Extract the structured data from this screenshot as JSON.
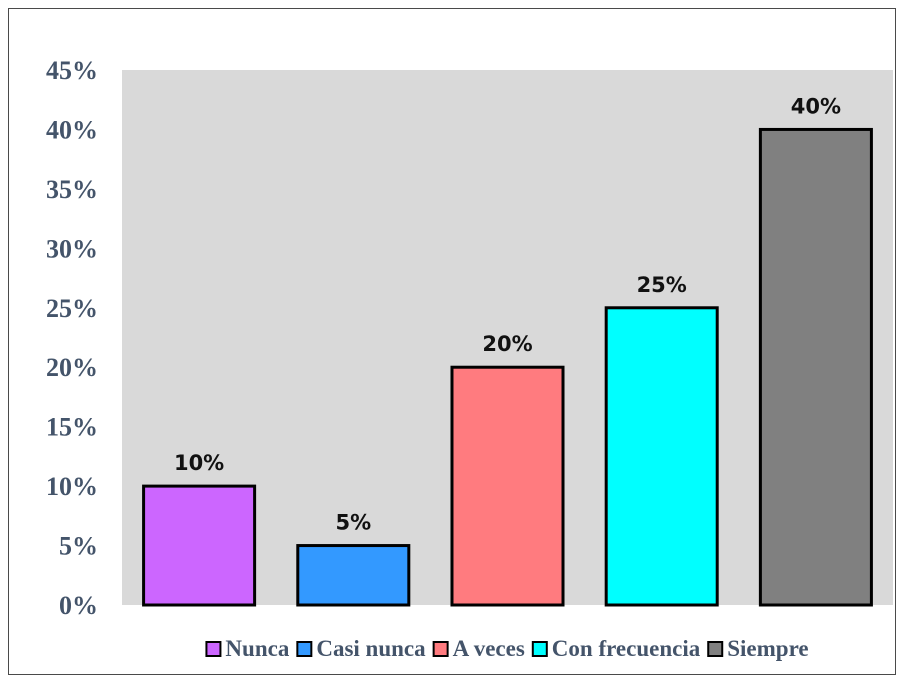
{
  "chart_data": {
    "type": "bar",
    "title": "",
    "xlabel": "",
    "ylabel": "",
    "categories": [
      "Nunca",
      "Casi nunca",
      "A veces",
      "Con frecuencia",
      "Siempre"
    ],
    "values": [
      10,
      5,
      20,
      25,
      40
    ],
    "value_labels": [
      "10%",
      "5%",
      "20%",
      "25%",
      "40%"
    ],
    "colors": [
      "#cc66ff",
      "#3399ff",
      "#ff7b7f",
      "#00ffff",
      "#808080"
    ],
    "ylim": [
      0,
      45
    ],
    "yticks": [
      0,
      5,
      10,
      15,
      20,
      25,
      30,
      35,
      40,
      45
    ],
    "ytick_labels": [
      "0%",
      "5%",
      "10%",
      "15%",
      "20%",
      "25%",
      "30%",
      "35%",
      "40%",
      "45%"
    ],
    "grid": false,
    "plot_background": "#d9d9d9",
    "legend": {
      "position": "bottom",
      "entries": [
        "Nunca",
        "Casi nunca",
        "A veces",
        "Con frecuencia",
        "Siempre"
      ]
    }
  }
}
